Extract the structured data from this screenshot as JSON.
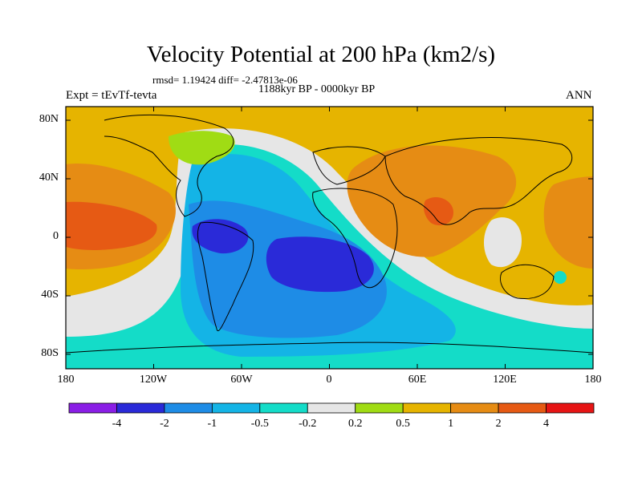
{
  "title": "Velocity Potential at 200 hPa (km2/s)",
  "stats": "rmsd= 1.19424 diff= -2.47813e-06",
  "period": "1188kyr BP - 0000kyr BP",
  "experiment": "Expt = tEvTf-tevta",
  "season": "ANN",
  "lat_ticks": [
    "80N",
    "40N",
    "0",
    "40S",
    "80S"
  ],
  "lon_ticks": [
    "180",
    "120W",
    "60W",
    "0",
    "60E",
    "120E",
    "180"
  ],
  "colorbar": {
    "labels": [
      "-4",
      "-2",
      "-1",
      "-0.5",
      "-0.2",
      "0.2",
      "0.5",
      "1",
      "2",
      "4"
    ],
    "colors": [
      "#8a1ee6",
      "#2a2ad8",
      "#1e8ce6",
      "#14b4e6",
      "#14dcc8",
      "#e6e6e6",
      "#a0dc14",
      "#e6b400",
      "#e68c14",
      "#e65a14",
      "#e61414"
    ]
  }
}
